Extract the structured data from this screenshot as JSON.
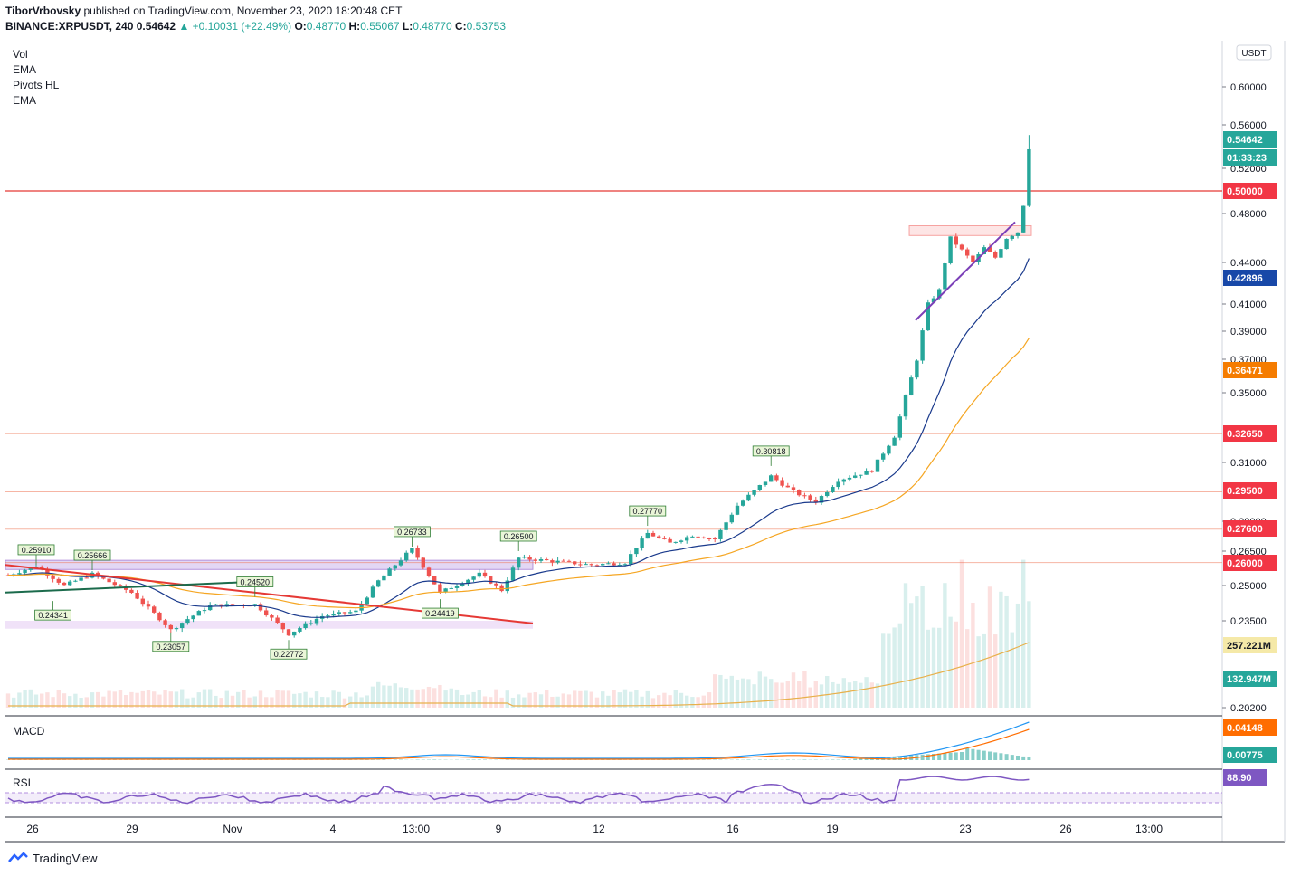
{
  "header": {
    "author": "TiborVrbovsky",
    "published_text": "published on TradingView.com, November 23, 2020 18:20:48 CET",
    "symbol": "BINANCE:XRPUSDT, 240",
    "last": "0.54642",
    "change": "▲ +0.10031 (+22.49%)",
    "o_label": "O:",
    "o_value": "0.48770",
    "h_label": "H:",
    "h_value": "0.55067",
    "l_label": "L:",
    "l_value": "0.48770",
    "c_label": "C:",
    "c_value": "0.53753"
  },
  "legend": [
    "Vol",
    "EMA",
    "Pivots HL",
    "EMA"
  ],
  "currency": "USDT",
  "colors": {
    "up": "#26a69a",
    "down": "#ef5350",
    "ema_fast": "#1a3a8c",
    "ema_slow": "#f5a623",
    "vol_ema": "#e8b04a",
    "trend": "#7b3fb8"
  },
  "chart_data": {
    "type": "candlestick",
    "y_axis_ticks": [
      "0.60000",
      "0.56000",
      "0.52000",
      "0.48000",
      "0.44000",
      "0.41000",
      "0.39000",
      "0.37000",
      "0.35000",
      "0.31000",
      "0.28000",
      "0.26500",
      "0.25000",
      "0.23500",
      "0.20200"
    ],
    "x_axis_ticks": [
      "26",
      "29",
      "Nov",
      "4",
      "13:00",
      "9",
      "12",
      "16",
      "19",
      "23",
      "26",
      "13:00"
    ],
    "price_labels": [
      {
        "text": "0.54642",
        "color": "#26a69a"
      },
      {
        "text": "01:33:23",
        "color": "#26a69a"
      },
      {
        "text": "0.50000",
        "color": "#f23645"
      },
      {
        "text": "0.42896",
        "color": "#1848a8"
      },
      {
        "text": "0.36471",
        "color": "#f57c00"
      },
      {
        "text": "0.32650",
        "color": "#f23645"
      },
      {
        "text": "0.29500",
        "color": "#f23645"
      },
      {
        "text": "0.27600",
        "color": "#f23645"
      },
      {
        "text": "0.26000",
        "color": "#f23645"
      },
      {
        "text": "257.221M",
        "color": "#f5e9a8"
      },
      {
        "text": "132.947M",
        "color": "#26a69a"
      }
    ],
    "horizontal_levels": [
      0.5,
      0.3265,
      0.295,
      0.276,
      0.26
    ],
    "pivot_labels": [
      {
        "text": "0.25910",
        "bar": 5,
        "price": 0.2591,
        "type": "high"
      },
      {
        "text": "0.25666",
        "bar": 15,
        "price": 0.2567,
        "type": "high"
      },
      {
        "text": "0.24341",
        "bar": 8,
        "price": 0.2434,
        "type": "low"
      },
      {
        "text": "0.24520",
        "bar": 44,
        "price": 0.2452,
        "type": "high"
      },
      {
        "text": "0.23057",
        "bar": 29,
        "price": 0.2306,
        "type": "low"
      },
      {
        "text": "0.22772",
        "bar": 50,
        "price": 0.2277,
        "type": "low"
      },
      {
        "text": "0.26733",
        "bar": 72,
        "price": 0.2673,
        "type": "high"
      },
      {
        "text": "0.24419",
        "bar": 77,
        "price": 0.2442,
        "type": "low"
      },
      {
        "text": "0.26500",
        "bar": 91,
        "price": 0.265,
        "type": "high"
      },
      {
        "text": "0.27770",
        "bar": 114,
        "price": 0.2777,
        "type": "high"
      },
      {
        "text": "0.30818",
        "bar": 136,
        "price": 0.3082,
        "type": "high"
      }
    ],
    "macd": {
      "label": "MACD",
      "value_macd": "0.04148",
      "value_hist": "0.00775"
    },
    "rsi": {
      "label": "RSI",
      "value": "88.90"
    }
  },
  "footer": {
    "brand": "TradingView"
  }
}
